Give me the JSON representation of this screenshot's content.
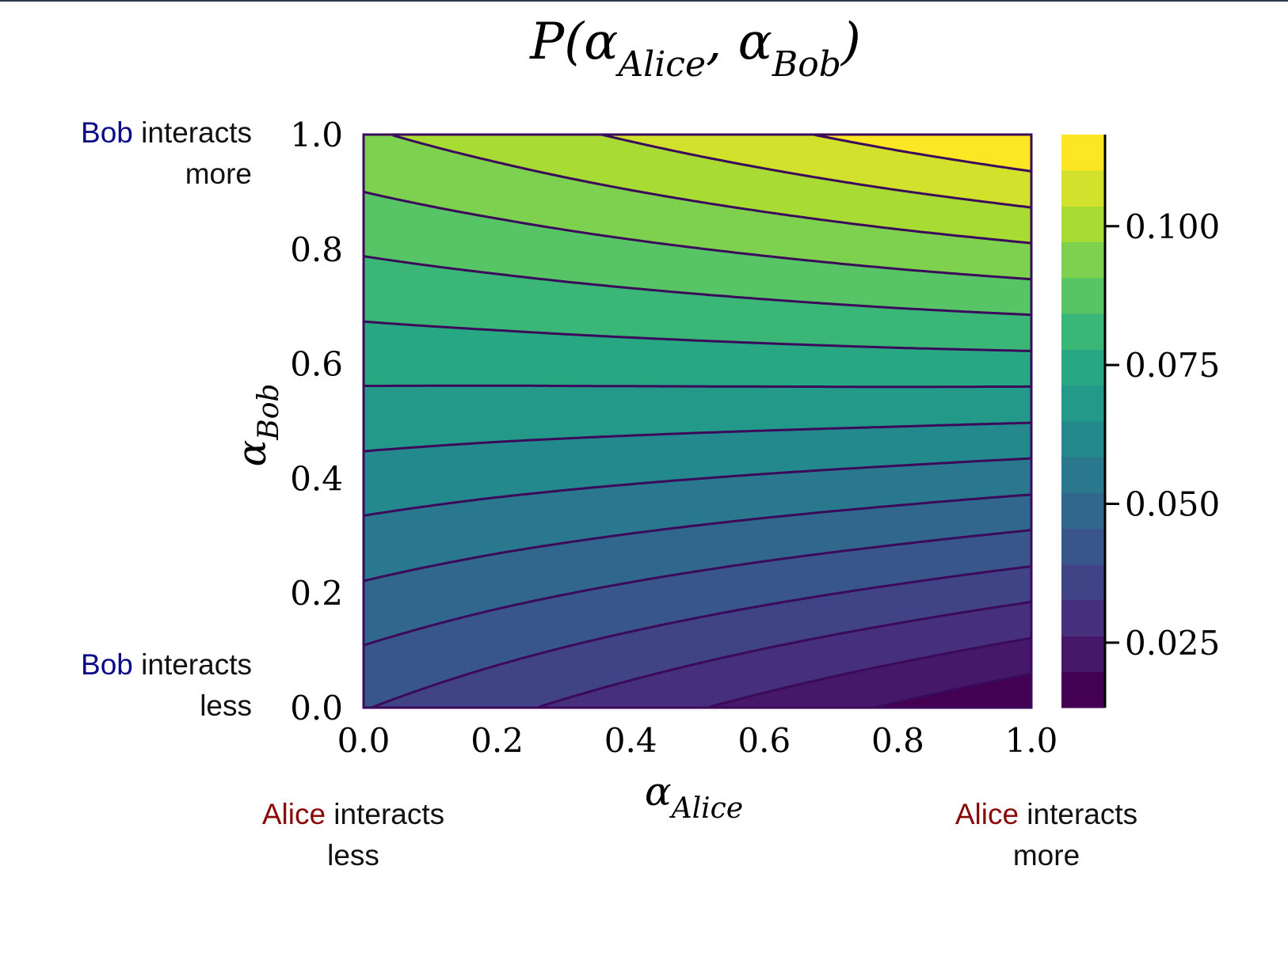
{
  "chart_data": {
    "type": "contour",
    "title": "P(α_Alice, α_Bob)",
    "title_parts": {
      "main": "P(α",
      "sub1": "Alice",
      "sep": ", α",
      "sub2": "Bob",
      "close": ")"
    },
    "xlabel": {
      "main": "α",
      "sub": "Alice"
    },
    "ylabel": {
      "main": "α",
      "sub": "Bob"
    },
    "xlim": [
      0,
      1
    ],
    "ylim": [
      0,
      1
    ],
    "x_ticks": [
      "0.0",
      "0.2",
      "0.4",
      "0.6",
      "0.8",
      "1.0"
    ],
    "y_ticks": [
      "0.0",
      "0.2",
      "0.4",
      "0.6",
      "0.8",
      "1.0"
    ],
    "x": [
      0,
      0.2,
      0.4,
      0.6,
      0.8,
      1.0
    ],
    "y": [
      0,
      0.2,
      0.4,
      0.6,
      0.8,
      1.0
    ],
    "z": [
      [
        0.0394,
        0.0342,
        0.0291,
        0.024,
        0.0189,
        0.0137
      ],
      [
        0.0507,
        0.0475,
        0.0442,
        0.0409,
        0.0376,
        0.0343
      ],
      [
        0.0621,
        0.0607,
        0.0593,
        0.0578,
        0.0564,
        0.0549
      ],
      [
        0.0736,
        0.0739,
        0.0743,
        0.0747,
        0.0751,
        0.0755
      ],
      [
        0.085,
        0.0872,
        0.0894,
        0.0917,
        0.0939,
        0.0961
      ],
      [
        0.0964,
        0.1004,
        0.1045,
        0.1086,
        0.1127,
        0.1167
      ]
    ],
    "levels": [
      0.0133,
      0.0198,
      0.0262,
      0.0327,
      0.0391,
      0.0456,
      0.052,
      0.0585,
      0.0649,
      0.0714,
      0.0778,
      0.0843,
      0.0907,
      0.0972,
      0.1036,
      0.1101,
      0.1165
    ],
    "colormap": "viridis",
    "contour_line_color": "#3b0a5a",
    "colorbar": {
      "ticks": [
        0.025,
        0.05,
        0.075,
        0.1
      ],
      "tick_labels": [
        "0.025",
        "0.050",
        "0.075",
        "0.100"
      ]
    }
  },
  "annotations": {
    "bob_more": {
      "name": "Bob",
      "rest": " interacts",
      "line2": "more"
    },
    "bob_less": {
      "name": "Bob",
      "rest": " interacts",
      "line2": "less"
    },
    "alice_less": {
      "name": "Alice",
      "rest": " interacts",
      "line2": "less"
    },
    "alice_more": {
      "name": "Alice",
      "rest": " interacts",
      "line2": "more"
    }
  },
  "colors": {
    "bob": "#0b0b8a",
    "alice": "#8a0a0a"
  }
}
